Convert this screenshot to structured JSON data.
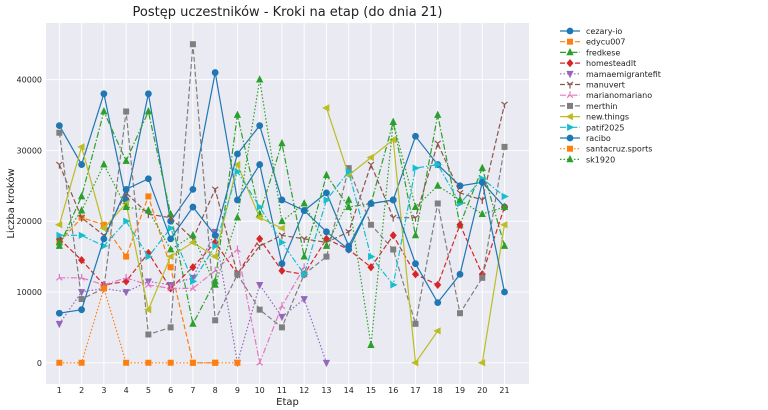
{
  "chart_data": {
    "type": "line",
    "title": "Postęp uczestników - Kroki na etap (do dnia 21)",
    "xlabel": "Etap",
    "ylabel": "Liczba kroków",
    "x": [
      1,
      2,
      3,
      4,
      5,
      6,
      7,
      8,
      9,
      10,
      11,
      12,
      13,
      14,
      15,
      16,
      17,
      18,
      19,
      20,
      21
    ],
    "xlim": [
      0.4,
      22.1
    ],
    "ylim": [
      -3000,
      48000
    ],
    "yticks": [
      0,
      10000,
      20000,
      30000,
      40000
    ],
    "ytick_labels": [
      "0",
      "10000",
      "20000",
      "30000",
      "40000"
    ],
    "grid": true,
    "legend_position": "outside-right",
    "series": [
      {
        "name": "cezary-io",
        "color": "#1f77b4",
        "dash": "solid",
        "marker": "circle",
        "values": [
          33500,
          28000,
          38000,
          23000,
          38000,
          20000,
          24500,
          41000,
          23000,
          28000,
          14000,
          21500,
          24000,
          16500,
          22500,
          23000,
          32000,
          28000,
          25000,
          25500,
          22000
        ]
      },
      {
        "name": "edycu007",
        "color": "#ff7f0e",
        "dash": "dashed",
        "marker": "square",
        "values": [
          17000,
          20500,
          19500,
          15000,
          23500,
          13500,
          0,
          0,
          null,
          null,
          null,
          null,
          null,
          null,
          null,
          null,
          null,
          null,
          null,
          null,
          null
        ]
      },
      {
        "name": "fredkese",
        "color": "#2ca02c",
        "dash": "dashdot",
        "marker": "triangle-up",
        "values": [
          16500,
          23500,
          35500,
          28500,
          35500,
          21000,
          5500,
          11500,
          35000,
          21000,
          31000,
          15000,
          26500,
          22000,
          22500,
          34000,
          18000,
          35000,
          19500,
          27500,
          16500
        ]
      },
      {
        "name": "homesteadlt",
        "color": "#d62728",
        "dash": "dashed",
        "marker": "diamond",
        "values": [
          17500,
          14500,
          11000,
          11500,
          15500,
          10500,
          13500,
          17000,
          12500,
          17500,
          13000,
          12500,
          17500,
          16000,
          13500,
          18000,
          12500,
          11000,
          19500,
          12500,
          22000
        ]
      },
      {
        "name": "mamaemigrantefit",
        "color": "#9467bd",
        "dash": "dotted",
        "marker": "triangle-down",
        "values": [
          5500,
          10000,
          10500,
          10000,
          11500,
          11000,
          12000,
          18500,
          0,
          11000,
          6500,
          9000,
          0,
          null,
          null,
          null,
          null,
          null,
          null,
          null,
          null
        ]
      },
      {
        "name": "manuvert",
        "color": "#8c564b",
        "dash": "dashed",
        "marker": "tri-down",
        "values": [
          28000,
          20500,
          18000,
          24000,
          21000,
          20500,
          17500,
          24500,
          12500,
          16500,
          18000,
          17500,
          17000,
          18500,
          28000,
          20500,
          20500,
          31000,
          24000,
          23000,
          36500
        ]
      },
      {
        "name": "marianomariano",
        "color": "#e377c2",
        "dash": "dashdot",
        "marker": "tri-up",
        "values": [
          12000,
          12000,
          11000,
          12000,
          11000,
          10500,
          10500,
          13000,
          16000,
          0,
          8000,
          13500,
          null,
          null,
          null,
          null,
          null,
          null,
          null,
          null,
          null
        ]
      },
      {
        "name": "merthin",
        "color": "#7f7f7f",
        "dash": "dashed",
        "marker": "square",
        "values": [
          32500,
          9000,
          10500,
          35500,
          4000,
          5000,
          45000,
          6000,
          12500,
          7500,
          5000,
          12500,
          15000,
          27500,
          19500,
          16000,
          5500,
          22500,
          7000,
          12000,
          30500
        ]
      },
      {
        "name": "new.things",
        "color": "#bcbd22",
        "dash": "solid",
        "marker": "tri-left",
        "values": [
          19500,
          30500,
          19000,
          22500,
          7500,
          15000,
          17000,
          15000,
          28000,
          20500,
          19000,
          null,
          36000,
          26500,
          29000,
          31500,
          0,
          4500,
          null,
          0,
          19500
        ]
      },
      {
        "name": "patif2025",
        "color": "#17becf",
        "dash": "dashdot",
        "marker": "tri-right",
        "values": [
          18000,
          18000,
          16500,
          20000,
          15000,
          19000,
          11500,
          16500,
          27000,
          22000,
          17000,
          12500,
          23000,
          27000,
          15000,
          11000,
          27500,
          28000,
          22500,
          26000,
          23500
        ]
      },
      {
        "name": "racibo",
        "color": "#1f77b4",
        "dash": "solid",
        "marker": "circle",
        "values": [
          7000,
          7500,
          17500,
          24500,
          26000,
          17500,
          22000,
          18000,
          29500,
          33500,
          23000,
          21500,
          18500,
          16000,
          22500,
          23000,
          14000,
          8500,
          12500,
          25500,
          10000
        ]
      },
      {
        "name": "santacruz.sports",
        "color": "#ff7f0e",
        "dash": "dotted",
        "marker": "square",
        "values": [
          0,
          0,
          10500,
          0,
          0,
          0,
          0,
          0,
          0,
          null,
          null,
          null,
          null,
          null,
          null,
          null,
          null,
          null,
          null,
          null,
          null
        ]
      },
      {
        "name": "sk1920",
        "color": "#2ca02c",
        "dash": "dotted",
        "marker": "triangle-up",
        "values": [
          17000,
          21500,
          28000,
          22000,
          21500,
          16000,
          18000,
          11000,
          20500,
          40000,
          20000,
          22500,
          16500,
          23000,
          2500,
          34000,
          22000,
          25000,
          23000,
          21000,
          22000
        ]
      }
    ]
  }
}
